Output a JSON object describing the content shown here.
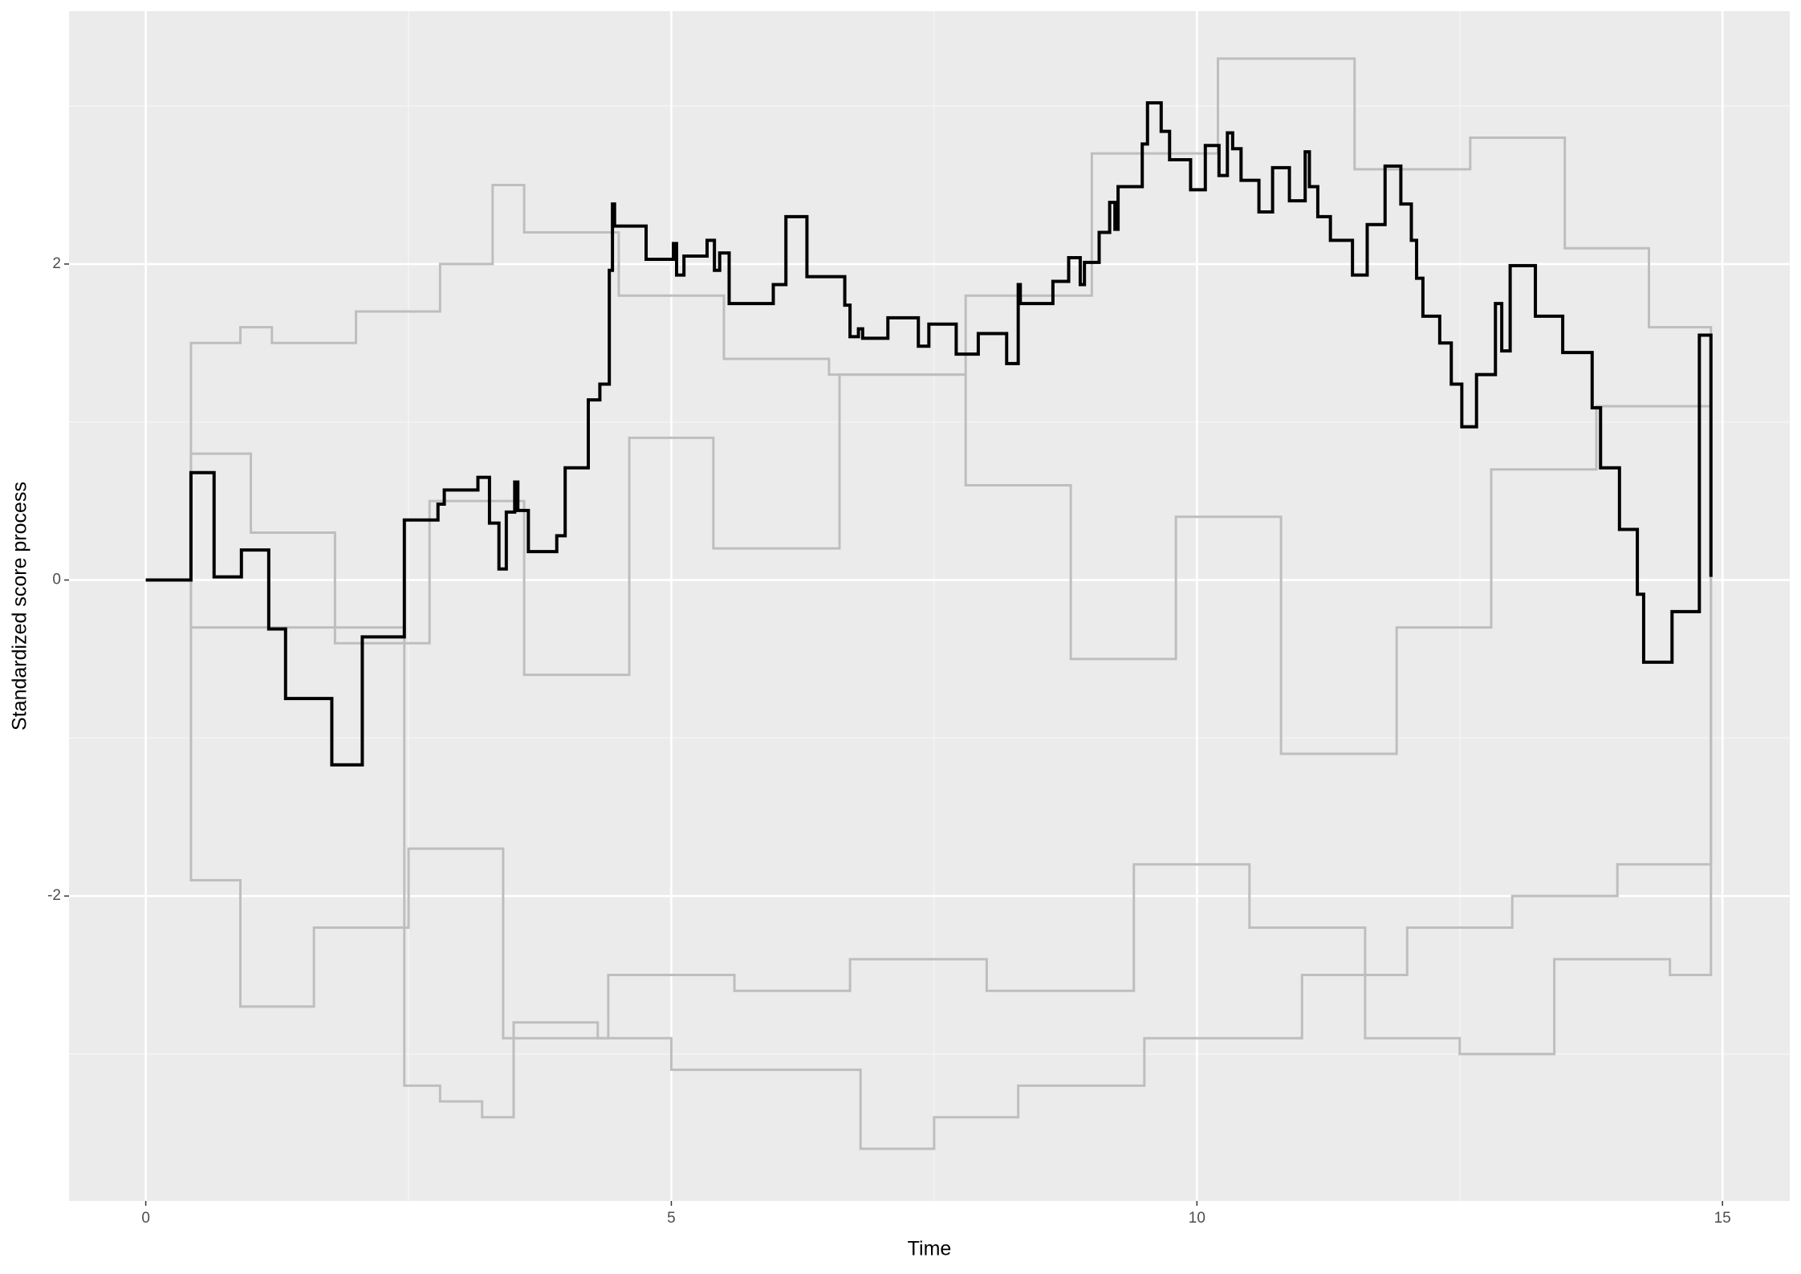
{
  "chart_data": {
    "type": "step",
    "x_label": "Time",
    "y_label": "Standardized score process",
    "xlim": [
      -0.73,
      15.64
    ],
    "ylim": [
      -3.93,
      3.6
    ],
    "xticks": [
      0,
      5,
      10,
      15
    ],
    "yticks": [
      -2,
      0,
      2
    ],
    "grid": true,
    "series": [
      {
        "color": "#bebebe",
        "x": [
          0,
          0.43,
          2.46,
          2.8,
          3.2,
          3.5,
          4.3,
          5.0,
          6.8,
          7.5,
          8.3,
          9.5,
          11.0,
          12.0,
          13.0,
          14.0,
          14.89
        ],
        "values": [
          0,
          -0.3,
          -3.2,
          -3.3,
          -3.4,
          -2.8,
          -2.9,
          -3.1,
          -3.6,
          -3.4,
          -3.2,
          -2.9,
          -2.5,
          -2.2,
          -2.0,
          -1.8,
          0
        ]
      },
      {
        "color": "#bebebe",
        "x": [
          0,
          0.43,
          0.9,
          1.2,
          2.0,
          2.8,
          3.3,
          3.6,
          4.5,
          5.5,
          6.5,
          7.8,
          9.0,
          10.2,
          11.5,
          12.6,
          13.5,
          14.3,
          14.89
        ],
        "values": [
          0,
          1.5,
          1.6,
          1.5,
          1.7,
          2.0,
          2.5,
          2.2,
          1.8,
          1.4,
          1.3,
          1.8,
          2.7,
          3.3,
          2.6,
          2.8,
          2.1,
          1.6,
          0
        ]
      },
      {
        "color": "#bebebe",
        "x": [
          0,
          0.43,
          0.9,
          1.6,
          2.5,
          3.4,
          4.4,
          5.6,
          6.7,
          8.0,
          9.4,
          10.5,
          11.6,
          12.5,
          13.4,
          14.5,
          14.89
        ],
        "values": [
          0,
          -1.9,
          -2.7,
          -2.2,
          -1.7,
          -2.9,
          -2.5,
          -2.6,
          -2.4,
          -2.6,
          -1.8,
          -2.2,
          -2.9,
          -3.0,
          -2.4,
          -2.5,
          0
        ]
      },
      {
        "color": "#bebebe",
        "x": [
          0,
          0.43,
          1.0,
          1.8,
          2.7,
          3.6,
          4.6,
          5.4,
          6.6,
          7.8,
          8.8,
          9.8,
          10.8,
          11.9,
          12.8,
          13.8,
          14.89
        ],
        "values": [
          0,
          0.8,
          0.3,
          -0.4,
          0.5,
          -0.6,
          0.9,
          0.2,
          1.3,
          0.6,
          -0.5,
          0.4,
          -1.1,
          -0.3,
          0.7,
          1.1,
          0
        ]
      },
      {
        "color": "#000000",
        "x": [
          0,
          0.43,
          0.65,
          0.91,
          1.17,
          1.33,
          1.77,
          2.06,
          2.46,
          2.78,
          2.84,
          3.16,
          3.27,
          3.36,
          3.43,
          3.51,
          3.54,
          3.64,
          3.91,
          3.99,
          4.21,
          4.32,
          4.41,
          4.44,
          4.46,
          4.76,
          5.02,
          5.05,
          5.12,
          5.34,
          5.41,
          5.46,
          5.55,
          5.97,
          6.09,
          6.29,
          6.65,
          6.7,
          6.78,
          6.82,
          7.06,
          7.35,
          7.45,
          7.71,
          7.92,
          8.19,
          8.3,
          8.32,
          8.63,
          8.78,
          8.89,
          8.93,
          9.07,
          9.17,
          9.22,
          9.25,
          9.48,
          9.53,
          9.66,
          9.74,
          9.94,
          10.08,
          10.21,
          10.29,
          10.34,
          10.42,
          10.59,
          10.72,
          10.88,
          11.03,
          11.07,
          11.15,
          11.27,
          11.48,
          11.62,
          11.79,
          11.94,
          12.04,
          12.09,
          12.15,
          12.31,
          12.42,
          12.52,
          12.66,
          12.84,
          12.9,
          12.98,
          13.22,
          13.48,
          13.76,
          13.84,
          14.02,
          14.19,
          14.25,
          14.52,
          14.78,
          14.89
        ],
        "values": [
          0,
          0.68,
          0.02,
          0.19,
          -0.31,
          -0.75,
          -1.17,
          -0.36,
          0.38,
          0.48,
          0.57,
          0.65,
          0.36,
          0.07,
          0.43,
          0.62,
          0.44,
          0.18,
          0.28,
          0.71,
          1.14,
          1.24,
          1.96,
          2.38,
          2.24,
          2.03,
          2.13,
          1.93,
          2.05,
          2.15,
          1.96,
          2.07,
          1.75,
          1.87,
          2.3,
          1.92,
          1.74,
          1.54,
          1.59,
          1.53,
          1.66,
          1.48,
          1.62,
          1.43,
          1.56,
          1.37,
          1.87,
          1.75,
          1.89,
          2.04,
          1.87,
          2.01,
          2.2,
          2.39,
          2.22,
          2.49,
          2.76,
          3.02,
          2.84,
          2.66,
          2.47,
          2.75,
          2.56,
          2.83,
          2.73,
          2.53,
          2.33,
          2.61,
          2.4,
          2.71,
          2.49,
          2.3,
          2.15,
          1.93,
          2.25,
          2.62,
          2.38,
          2.15,
          1.91,
          1.67,
          1.5,
          1.24,
          0.97,
          1.3,
          1.75,
          1.45,
          1.99,
          1.67,
          1.44,
          1.09,
          0.71,
          0.32,
          -0.09,
          -0.52,
          -0.2,
          1.55,
          0.02
        ]
      }
    ]
  }
}
